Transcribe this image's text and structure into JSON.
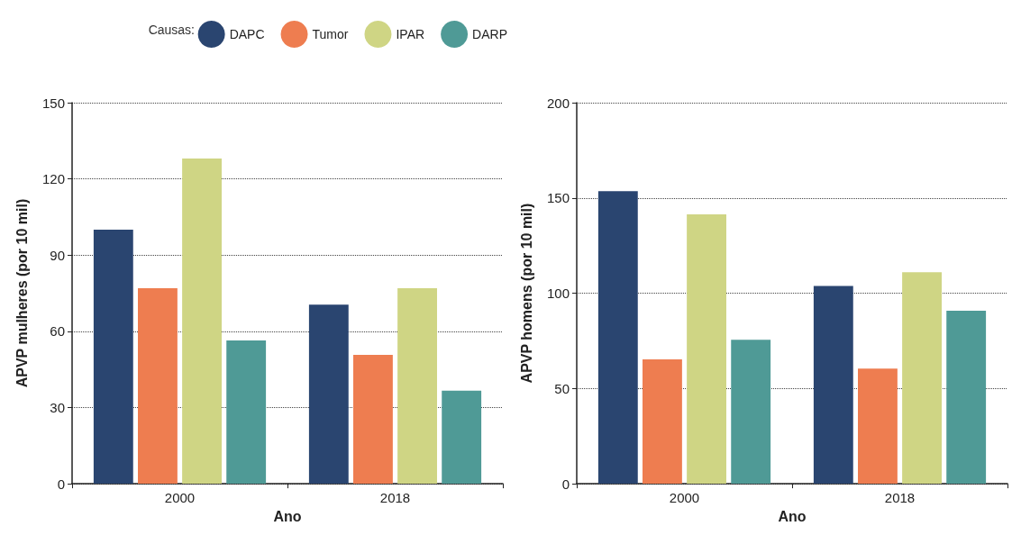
{
  "chart_data": [
    {
      "type": "bar",
      "categories": [
        "2000",
        "2018"
      ],
      "xlabel": "Ano",
      "ylabel": "APVP mulheres (por 10 mil)",
      "legend_title": "Causas:",
      "legend": "top",
      "grid": "y",
      "ylim": [
        0,
        150
      ],
      "yticks": [
        0,
        30,
        60,
        90,
        120,
        150
      ],
      "series": [
        {
          "name": "DAPC",
          "color": "#2a4570",
          "values": [
            100,
            70.5
          ]
        },
        {
          "name": "Tumor",
          "color": "#ee7d50",
          "values": [
            77,
            50.7
          ]
        },
        {
          "name": "IPAR",
          "color": "#cfd584",
          "values": [
            128,
            77
          ]
        },
        {
          "name": "DARP",
          "color": "#4f9a96",
          "values": [
            56.4,
            36.6
          ]
        }
      ]
    },
    {
      "type": "bar",
      "categories": [
        "2000",
        "2018"
      ],
      "xlabel": "Ano",
      "ylabel": "APVP homens (por 10 mil)",
      "legend": false,
      "grid": "y",
      "ylim": [
        0,
        200
      ],
      "yticks": [
        0,
        50,
        100,
        150,
        200
      ],
      "series": [
        {
          "color": "#2a4570",
          "values": [
            153.5,
            103.8
          ]
        },
        {
          "color": "#ee7d50",
          "values": [
            65.3,
            60.4
          ]
        },
        {
          "color": "#cfd584",
          "values": [
            141.4,
            111
          ]
        },
        {
          "color": "#4f9a96",
          "values": [
            75.6,
            90.8
          ]
        }
      ]
    }
  ]
}
